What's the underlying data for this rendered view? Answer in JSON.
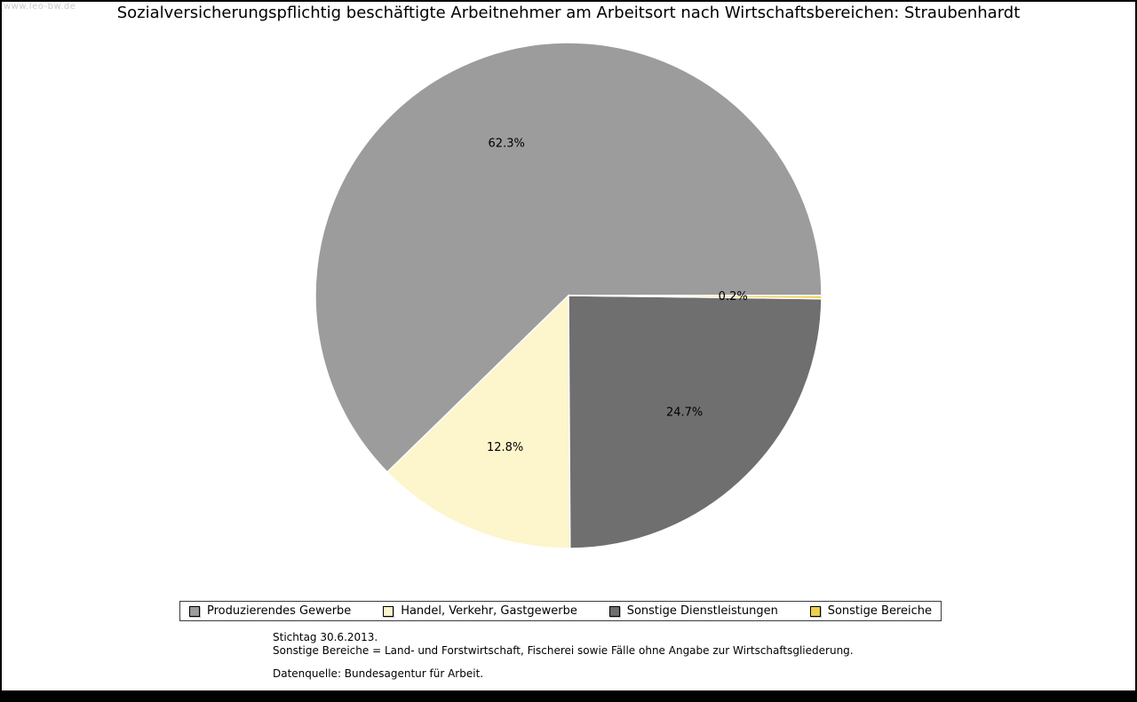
{
  "watermark": "www.leo-bw.de",
  "title": "Sozialversicherungspflichtig beschäftigte Arbeitnehmer am Arbeitsort nach Wirtschaftsbereichen: Straubenhardt",
  "chart_data": {
    "type": "pie",
    "title": "Sozialversicherungspflichtig beschäftigte Arbeitnehmer am Arbeitsort nach Wirtschaftsbereichen: Straubenhardt",
    "unit": "%",
    "start_angle_deg": 0,
    "direction": "counterclockwise",
    "legend_position": "bottom",
    "slices": [
      {
        "label": "Produzierendes Gewerbe",
        "value": 62.3,
        "pct_label": "62.3%",
        "color": "#9c9c9c"
      },
      {
        "label": "Handel, Verkehr, Gastgewerbe",
        "value": 12.8,
        "pct_label": "12.8%",
        "color": "#fdf5cb"
      },
      {
        "label": "Sonstige Dienstleistungen",
        "value": 24.7,
        "pct_label": "24.7%",
        "color": "#6f6f6f"
      },
      {
        "label": "Sonstige Bereiche",
        "value": 0.2,
        "pct_label": "0.2%",
        "color": "#edd04d"
      }
    ]
  },
  "footnotes": {
    "stichtag": "Stichtag 30.6.2013.",
    "definition": "Sonstige Bereiche = Land- und Forstwirtschaft, Fischerei sowie Fälle ohne Angabe zur Wirtschaftsgliederung.",
    "source": "Datenquelle: Bundesagentur für Arbeit."
  }
}
